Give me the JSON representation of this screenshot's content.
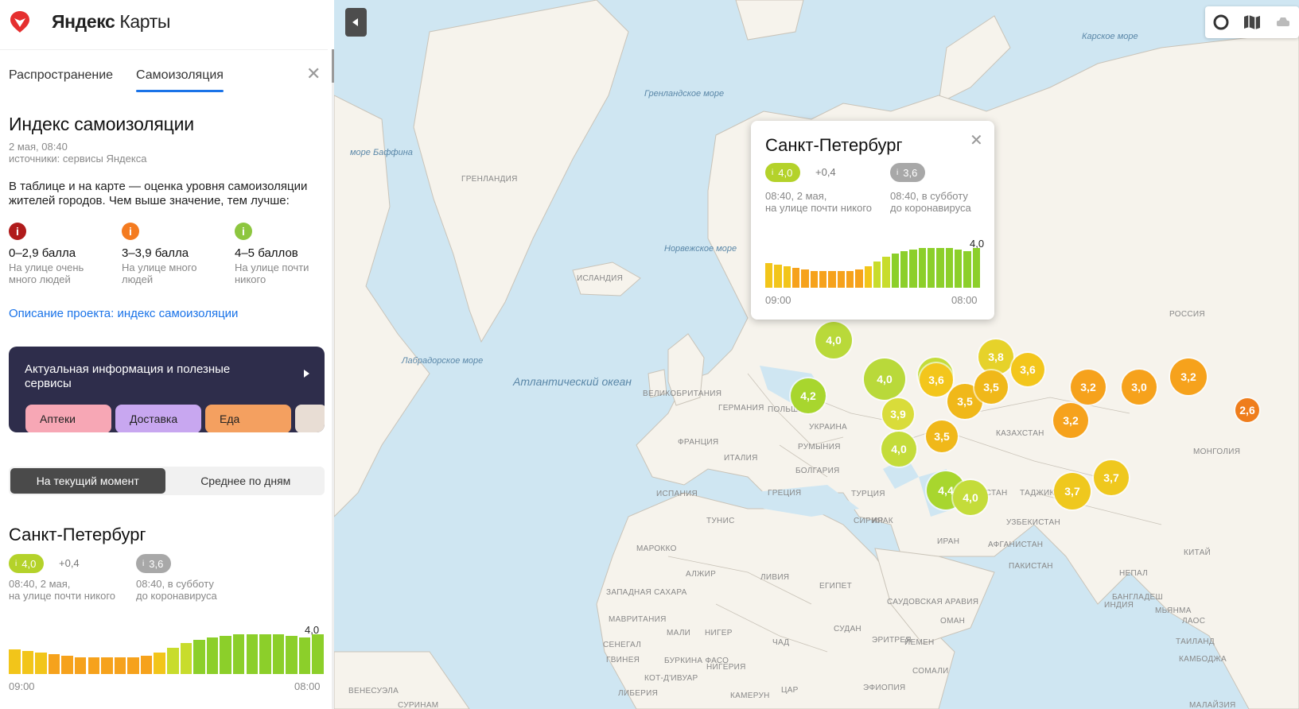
{
  "app": {
    "logo_brand": "Яндекс",
    "logo_product": "Карты"
  },
  "tabs": [
    {
      "label": "Распространение",
      "active": false
    },
    {
      "label": "Самоизоляция",
      "active": true
    }
  ],
  "panel": {
    "title": "Индекс самоизоляции",
    "date": "2 мая, 08:40",
    "source": "источники: сервисы Яндекса",
    "description": "В таблице и на карте — оценка уровня самоизоляции жителей городов. Чем выше значение, тем лучше:",
    "legend": [
      {
        "range": "0–2,9 балла",
        "note_line1": "На улице очень",
        "note_line2": "много людей",
        "color": "#b01b1b"
      },
      {
        "range": "3–3,9 балла",
        "note_line1": "На улице много",
        "note_line2": "людей",
        "color": "#f47b20"
      },
      {
        "range": "4–5 баллов",
        "note_line1": "На улице почти",
        "note_line2": "никого",
        "color": "#8dc63f"
      }
    ],
    "link": "Описание проекта: индекс самоизоляции",
    "banner": {
      "title": "Актуальная информация и полезные сервисы",
      "chips": [
        {
          "label": "Аптеки",
          "color": "#f7a7b5"
        },
        {
          "label": "Доставка",
          "color": "#c8a7f0"
        },
        {
          "label": "Еда",
          "color": "#f4a060"
        }
      ]
    },
    "segmented": {
      "current": "На текущий момент",
      "average": "Среднее по дням"
    },
    "city": {
      "name": "Санкт-Петербург",
      "value": "4,0",
      "delta": "+0,4",
      "baseline": "3,6",
      "time_line1": "08:40, 2 мая,",
      "time_line2": "на улице почти никого",
      "base_line1": "08:40, в субботу",
      "base_line2": "до коронавируса",
      "last_value_label": "4,0",
      "axis_start": "09:00",
      "axis_end": "08:00"
    }
  },
  "chart_data": {
    "type": "bar",
    "categories": [
      "09:00",
      "",
      "",
      "",
      "",
      "",
      "",
      "",
      "",
      "",
      "",
      "",
      "",
      "",
      "",
      "",
      "",
      "",
      "",
      "",
      "",
      "",
      "",
      "08:00"
    ],
    "values": [
      3.55,
      3.5,
      3.45,
      3.4,
      3.35,
      3.3,
      3.3,
      3.3,
      3.3,
      3.3,
      3.35,
      3.45,
      3.6,
      3.75,
      3.85,
      3.9,
      3.95,
      4.0,
      4.0,
      4.0,
      4.0,
      3.95,
      3.9,
      4.0
    ],
    "ylim": [
      2.8,
      4.2
    ]
  },
  "popup": {
    "city": "Санкт-Петербург",
    "value": "4,0",
    "delta": "+0,4",
    "baseline": "3,6",
    "time_line1": "08:40, 2 мая,",
    "time_line2": "на улице почти никого",
    "base_line1": "08:40, в субботу",
    "base_line2": "до коронавируса",
    "last_value_label": "4,0",
    "axis_start": "09:00",
    "axis_end": "08:00"
  },
  "map": {
    "sea_labels": [
      {
        "text": "Карское море"
      },
      {
        "text": "Гренландское море"
      },
      {
        "text": "море Баффина"
      },
      {
        "text": "Норвежское море"
      },
      {
        "text": "Лабрадорское море"
      }
    ],
    "ocean_label": "Атлантический океан",
    "countries": [
      "Гренландия",
      "Исландия",
      "Россия",
      "Великобритания",
      "Германия",
      "Польша",
      "Украина",
      "Франция",
      "Румыния",
      "Италия",
      "Болгария",
      "Казахстан",
      "Монголия",
      "Испания",
      "Греция",
      "Турция",
      "Узбекистан",
      "Туркменистан",
      "Таджикистан",
      "Сирия",
      "Ирак",
      "Иран",
      "Афганистан",
      "Тунис",
      "Марокко",
      "Алжир",
      "Ливия",
      "Египет",
      "Пакистан",
      "Китай",
      "Непал",
      "Западная Сахара",
      "Мавритания",
      "Саудовская Аравия",
      "Оман",
      "Индия",
      "Бангладеш",
      "Мьянма",
      "Лаос",
      "Мали",
      "Нигер",
      "Судан",
      "Чад",
      "Эритрея",
      "Йемен",
      "Таиланд",
      "Сенегал",
      "Гвинея",
      "Буркина Фасо",
      "Нигерия",
      "Камбоджа",
      "Кот-д'Ивуар",
      "Сомали",
      "Эфиопия",
      "Либерия",
      "ЦАР",
      "Камерун",
      "Венесуэла",
      "Суринам",
      "Малайзия"
    ],
    "markers": [
      {
        "value": "4,0",
        "color": "#b9d93a"
      },
      {
        "value": "4,2",
        "color": "#a8d62e"
      },
      {
        "value": "4,0",
        "color": "#b9d93a"
      },
      {
        "value": "4,0",
        "color": "#c4dc3a"
      },
      {
        "value": "3,8",
        "color": "#e6d22a"
      },
      {
        "value": "3,6",
        "color": "#f3c61c"
      },
      {
        "value": "3,6",
        "color": "#f3c61c"
      },
      {
        "value": "3,5",
        "color": "#f0b81a"
      },
      {
        "value": "3,5",
        "color": "#f0b81a"
      },
      {
        "value": "3,9",
        "color": "#d9dc3a"
      },
      {
        "value": "3,5",
        "color": "#f0b81a"
      },
      {
        "value": "4,0",
        "color": "#c4dc3a"
      },
      {
        "value": "3,2",
        "color": "#f6a21c"
      },
      {
        "value": "3,0",
        "color": "#f6a21c"
      },
      {
        "value": "3,2",
        "color": "#f6a21c"
      },
      {
        "value": "3,2",
        "color": "#f6a21c"
      },
      {
        "value": "2,6",
        "color": "#ef7d1c"
      },
      {
        "value": "4,4",
        "color": "#a8d62e"
      },
      {
        "value": "4,0",
        "color": "#c4dc3a"
      },
      {
        "value": "3,7",
        "color": "#efc81e"
      },
      {
        "value": "3,7",
        "color": "#efc81e"
      }
    ]
  }
}
